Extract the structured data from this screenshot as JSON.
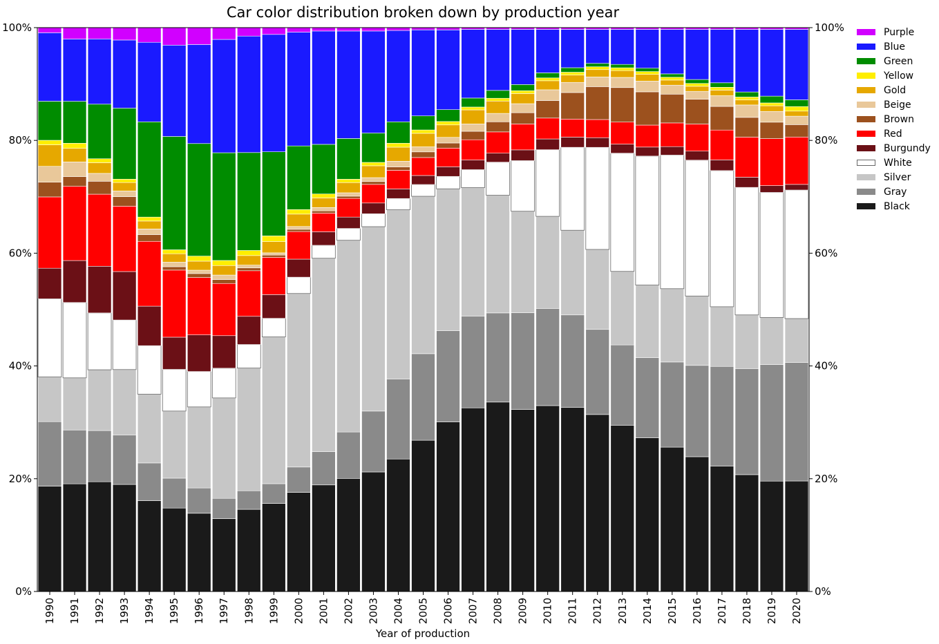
{
  "chart_data": {
    "type": "bar",
    "stacked": true,
    "normalized": true,
    "title": "Car color distribution broken down by production year",
    "xlabel": "Year of production",
    "ylabel": "",
    "ylim": [
      0,
      100
    ],
    "yticks": [
      "0%",
      "20%",
      "40%",
      "60%",
      "80%",
      "100%"
    ],
    "grid": false,
    "legend_position": "right",
    "categories": [
      "1990",
      "1991",
      "1992",
      "1993",
      "1994",
      "1995",
      "1996",
      "1997",
      "1998",
      "1999",
      "2000",
      "2001",
      "2002",
      "2003",
      "2004",
      "2005",
      "2006",
      "2007",
      "2008",
      "2009",
      "2010",
      "2011",
      "2012",
      "2013",
      "2014",
      "2015",
      "2016",
      "2017",
      "2018",
      "2019",
      "2020"
    ],
    "series": [
      {
        "name": "Black",
        "color": "#1a1a1a",
        "values": [
          18.6,
          19.0,
          19.5,
          19.0,
          16.1,
          14.8,
          13.9,
          13.0,
          14.6,
          15.6,
          17.6,
          18.9,
          20.0,
          21.2,
          23.5,
          26.9,
          30.0,
          32.6,
          33.8,
          32.3,
          32.9,
          32.6,
          31.2,
          29.4,
          27.3,
          25.6,
          23.9,
          22.3,
          20.7,
          19.5,
          19.6
        ]
      },
      {
        "name": "Gray",
        "color": "#8a8a8a",
        "values": [
          11.4,
          9.5,
          9.1,
          8.8,
          6.7,
          5.3,
          4.5,
          3.6,
          3.3,
          3.5,
          4.5,
          5.9,
          8.2,
          10.8,
          14.2,
          15.4,
          16.1,
          16.3,
          15.9,
          17.2,
          17.2,
          16.4,
          15.0,
          14.2,
          14.2,
          15.1,
          16.2,
          17.7,
          18.8,
          20.6,
          21.0
        ]
      },
      {
        "name": "Silver",
        "color": "#c6c6c6",
        "values": [
          7.9,
          9.2,
          10.8,
          11.6,
          12.2,
          11.9,
          14.4,
          17.9,
          21.8,
          26.0,
          30.8,
          34.3,
          33.9,
          32.7,
          30.0,
          28.0,
          25.1,
          22.8,
          21.0,
          18.0,
          16.3,
          15.0,
          14.1,
          13.0,
          12.9,
          13.0,
          12.3,
          10.6,
          9.5,
          8.3,
          7.8
        ]
      },
      {
        "name": "White",
        "color": "#ffffff",
        "values": [
          13.8,
          13.3,
          10.1,
          8.8,
          8.6,
          7.4,
          6.3,
          5.3,
          4.2,
          3.3,
          2.9,
          2.3,
          2.1,
          2.3,
          2.0,
          2.1,
          2.2,
          3.2,
          5.9,
          9.0,
          11.8,
          14.7,
          18.0,
          20.9,
          22.9,
          23.7,
          24.1,
          24.2,
          22.6,
          22.1,
          22.8
        ]
      },
      {
        "name": "Burgundy",
        "color": "#6b1016",
        "values": [
          5.4,
          7.4,
          8.3,
          8.6,
          7.0,
          5.7,
          6.5,
          5.8,
          5.0,
          4.2,
          3.2,
          2.4,
          2.0,
          1.9,
          1.7,
          1.6,
          1.7,
          1.7,
          1.6,
          1.9,
          1.9,
          1.8,
          1.7,
          1.6,
          1.6,
          1.5,
          1.6,
          1.9,
          1.8,
          1.2,
          1.0
        ]
      },
      {
        "name": "Red",
        "color": "#ff0000",
        "values": [
          12.6,
          13.1,
          12.8,
          11.6,
          11.5,
          11.9,
          10.2,
          9.3,
          8.1,
          6.6,
          4.9,
          3.3,
          3.3,
          3.3,
          3.3,
          3.2,
          3.3,
          3.6,
          3.8,
          4.6,
          3.7,
          3.2,
          3.2,
          3.9,
          3.9,
          4.2,
          4.8,
          5.3,
          7.1,
          8.3,
          8.4
        ]
      },
      {
        "name": "Brown",
        "color": "#9c511e",
        "values": [
          2.6,
          1.7,
          2.3,
          1.7,
          1.2,
          0.6,
          0.7,
          0.7,
          0.5,
          0.4,
          0.4,
          0.4,
          0.4,
          0.5,
          0.6,
          1.0,
          0.9,
          1.5,
          1.8,
          2.0,
          3.1,
          4.7,
          5.8,
          6.1,
          5.9,
          5.1,
          4.4,
          4.2,
          3.5,
          2.9,
          2.2
        ]
      },
      {
        "name": "Beige",
        "color": "#e9c89a",
        "values": [
          2.8,
          2.6,
          1.4,
          1.0,
          1.0,
          0.8,
          0.6,
          0.8,
          0.5,
          0.4,
          0.5,
          0.6,
          0.6,
          0.7,
          1.0,
          0.9,
          1.0,
          1.3,
          1.5,
          1.6,
          1.9,
          1.8,
          1.7,
          1.8,
          1.9,
          1.6,
          1.4,
          1.9,
          2.2,
          1.9,
          1.5
        ]
      },
      {
        "name": "Gold",
        "color": "#e6a800",
        "values": [
          3.8,
          2.4,
          1.9,
          1.5,
          1.4,
          1.5,
          1.6,
          1.7,
          1.7,
          2.0,
          2.2,
          1.7,
          1.8,
          2.1,
          2.5,
          2.4,
          2.2,
          2.5,
          2.2,
          1.8,
          1.6,
          1.3,
          1.3,
          1.2,
          1.2,
          0.9,
          0.9,
          1.0,
          0.9,
          1.0,
          0.9
        ]
      },
      {
        "name": "Yellow",
        "color": "#ffee00",
        "values": [
          0.8,
          0.9,
          0.7,
          0.6,
          0.7,
          0.7,
          0.9,
          0.9,
          0.9,
          1.0,
          0.8,
          0.7,
          0.6,
          0.6,
          0.7,
          0.6,
          0.6,
          0.5,
          0.5,
          0.5,
          0.5,
          0.5,
          0.5,
          0.5,
          0.5,
          0.5,
          0.5,
          0.5,
          0.5,
          0.5,
          0.8
        ]
      },
      {
        "name": "Green",
        "color": "#008c00",
        "values": [
          6.9,
          7.4,
          9.7,
          12.6,
          16.9,
          20.1,
          20.0,
          19.2,
          17.4,
          14.9,
          11.3,
          8.8,
          7.2,
          5.2,
          3.8,
          2.5,
          2.1,
          1.6,
          1.4,
          1.1,
          0.9,
          0.8,
          0.6,
          0.6,
          0.6,
          0.6,
          0.7,
          0.8,
          0.9,
          1.2,
          1.2
        ]
      },
      {
        "name": "Blue",
        "color": "#1a1aff",
        "values": [
          12.1,
          11.0,
          11.6,
          12.1,
          14.1,
          16.2,
          17.6,
          20.2,
          20.7,
          20.8,
          20.2,
          20.1,
          19.0,
          18.1,
          16.2,
          15.3,
          14.1,
          12.2,
          10.9,
          9.8,
          7.7,
          6.8,
          6.0,
          6.2,
          6.9,
          7.9,
          8.9,
          9.5,
          11.1,
          11.8,
          12.5
        ]
      },
      {
        "name": "Purple",
        "color": "#d100ff",
        "values": [
          0.9,
          2.0,
          2.0,
          2.2,
          2.6,
          3.1,
          3.0,
          2.1,
          1.5,
          1.2,
          0.8,
          0.6,
          0.6,
          0.6,
          0.5,
          0.4,
          0.4,
          0.3,
          0.3,
          0.3,
          0.3,
          0.3,
          0.3,
          0.3,
          0.3,
          0.3,
          0.3,
          0.3,
          0.3,
          0.3,
          0.3
        ]
      }
    ]
  }
}
